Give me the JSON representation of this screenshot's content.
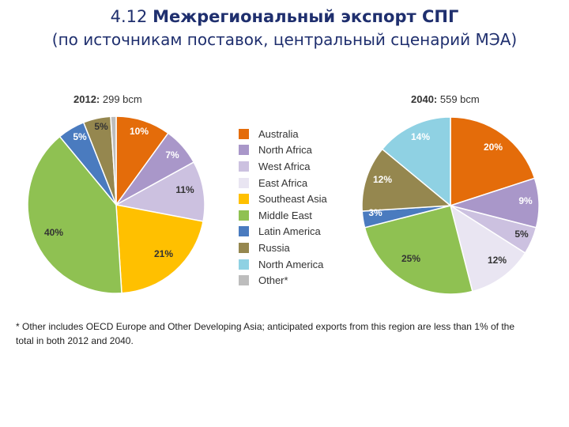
{
  "page": {
    "title_prefix": "4.12",
    "title_bold": "Межрегиональный экспорт СПГ",
    "subtitle": "(по источникам поставок, центральный сценарий МЭА)",
    "footnote_line1": "* Other includes OECD Europe and Other Developing Asia; anticipated exports from this region are less than 1% of the",
    "footnote_line2": "total in both 2012 and 2040."
  },
  "chart_data": [
    {
      "type": "pie",
      "title_year": "2012:",
      "title_value": "299 bcm",
      "categories": [
        "Australia",
        "North Africa",
        "West Africa",
        "East Africa",
        "Southeast Asia",
        "Middle East",
        "Latin America",
        "Russia",
        "North America",
        "Other*"
      ],
      "values": [
        10,
        7,
        11,
        0,
        21,
        40,
        5,
        5,
        0,
        1
      ],
      "labels": [
        "10%",
        "7%",
        "11%",
        "",
        "21%",
        "40%",
        "5%",
        "5%",
        "",
        ""
      ]
    },
    {
      "type": "pie",
      "title_year": "2040:",
      "title_value": "559 bcm",
      "categories": [
        "Australia",
        "North Africa",
        "West Africa",
        "East Africa",
        "Southeast Asia",
        "Middle East",
        "Latin America",
        "Russia",
        "North America",
        "Other*"
      ],
      "values": [
        20,
        9,
        5,
        12,
        0,
        25,
        3,
        12,
        14,
        0
      ],
      "labels": [
        "20%",
        "9%",
        "5%",
        "12%",
        "",
        "25%",
        "3%",
        "12%",
        "14%",
        ""
      ]
    }
  ],
  "legend": [
    {
      "label": "Australia",
      "color": "#e46c0a"
    },
    {
      "label": "North Africa",
      "color": "#a997c9"
    },
    {
      "label": "West Africa",
      "color": "#ccc1e0"
    },
    {
      "label": "East Africa",
      "color": "#e9e5f2"
    },
    {
      "label": "Southeast Asia",
      "color": "#ffc000"
    },
    {
      "label": "Middle East",
      "color": "#8fc152"
    },
    {
      "label": "Latin America",
      "color": "#4a7bbf"
    },
    {
      "label": "Russia",
      "color": "#95874f"
    },
    {
      "label": "North America",
      "color": "#8fd1e3"
    },
    {
      "label": "Other*",
      "color": "#bdbdbd"
    }
  ]
}
